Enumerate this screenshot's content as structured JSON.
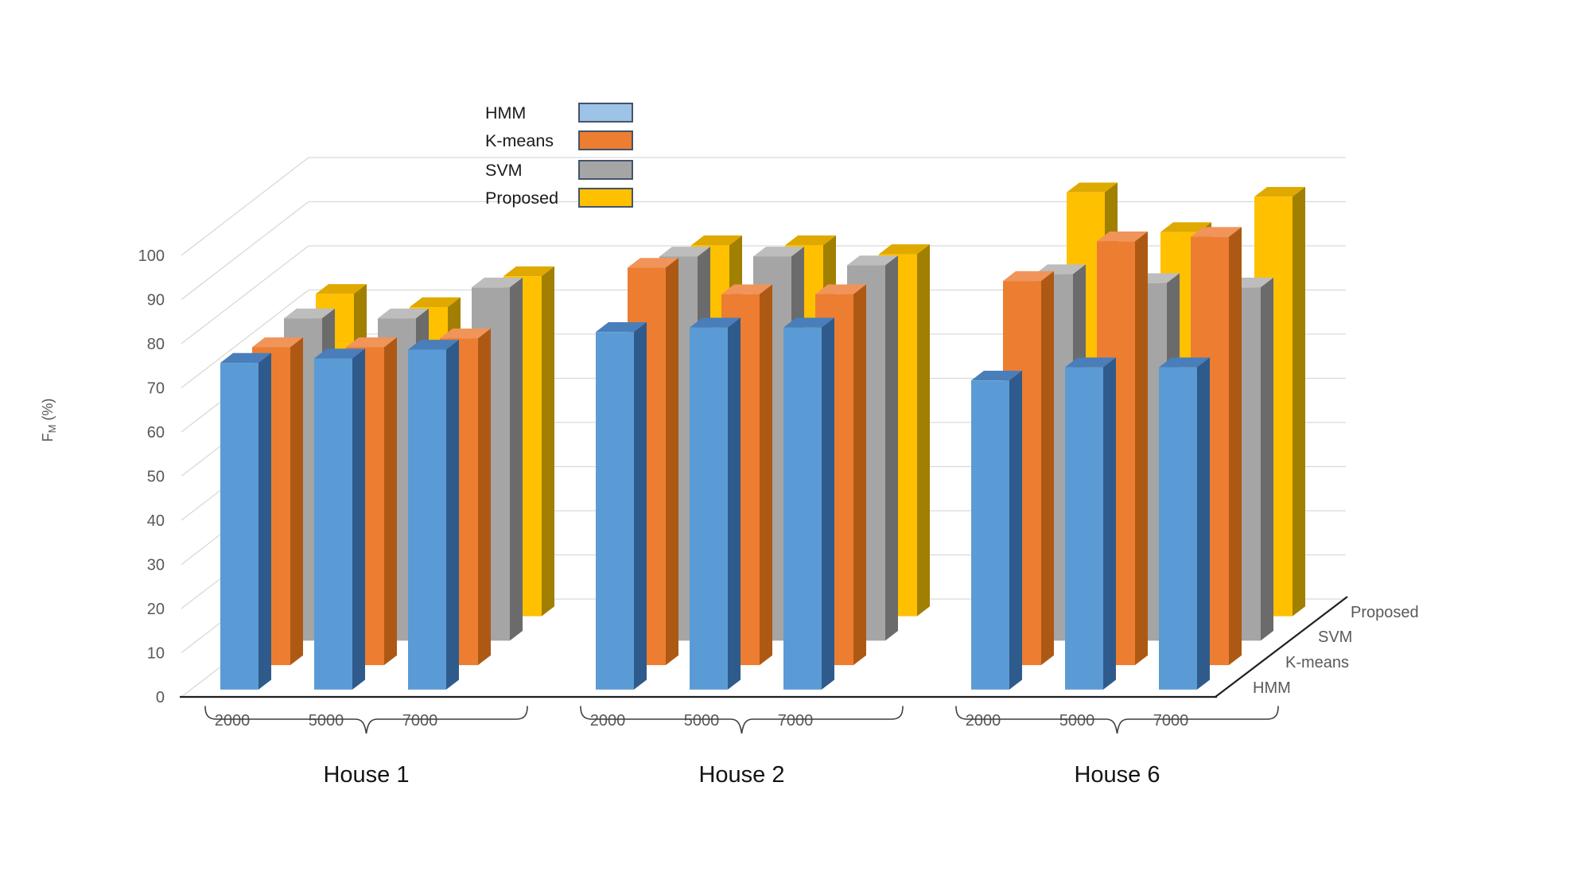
{
  "chart_data": {
    "type": "bar",
    "projection": "3d",
    "title": "",
    "ylabel": {
      "prefix": "F",
      "subscript": "M",
      "suffix": " (%)"
    },
    "y_axis": {
      "min": 0,
      "max": 100,
      "step": 10,
      "tick_labels": [
        "0",
        "10",
        "20",
        "30",
        "40",
        "50",
        "60",
        "70",
        "80",
        "90",
        "100"
      ]
    },
    "houses": [
      {
        "label": "House 1",
        "ticks": [
          "2000",
          "5000",
          "7000"
        ]
      },
      {
        "label": "House 2",
        "ticks": [
          "2000",
          "5000",
          "7000"
        ]
      },
      {
        "label": "House 6",
        "ticks": [
          "2000",
          "5000",
          "7000"
        ]
      }
    ],
    "series": [
      {
        "name": "HMM",
        "legend_fill": "#9DC3E6",
        "color_front": "#5B9BD5",
        "color_top": "#4A7EBA",
        "color_side": "#2E5B8C",
        "values": [
          [
            74,
            75,
            77
          ],
          [
            81,
            82,
            82
          ],
          [
            70,
            73,
            73
          ]
        ]
      },
      {
        "name": "K-means",
        "legend_fill": "#ED7D31",
        "color_front": "#ED7D31",
        "color_top": "#F0945A",
        "color_side": "#AE5913",
        "values": [
          [
            72,
            72,
            74
          ],
          [
            90,
            84,
            84
          ],
          [
            87,
            96,
            97
          ]
        ]
      },
      {
        "name": "SVM",
        "legend_fill": "#A5A5A5",
        "color_front": "#A5A5A5",
        "color_top": "#BDBDBD",
        "color_side": "#6B6B6B",
        "values": [
          [
            73,
            73,
            80
          ],
          [
            87,
            87,
            85
          ],
          [
            83,
            81,
            80
          ]
        ]
      },
      {
        "name": "Proposed",
        "legend_fill": "#FFC000",
        "color_front": "#FFC000",
        "color_top": "#DFA900",
        "color_side": "#A17F00",
        "values": [
          [
            73,
            70,
            77
          ],
          [
            84,
            84,
            82
          ],
          [
            96,
            87,
            95
          ]
        ]
      }
    ],
    "depth_axis_labels": [
      "HMM",
      "K-means",
      "SVM",
      "Proposed"
    ],
    "legend": {
      "position": "top-center",
      "entries": [
        "HMM",
        "K-means",
        "SVM",
        "Proposed"
      ]
    },
    "grid": true,
    "colors": {
      "grid": "#D9D9D9",
      "axis": "#1F1F1F",
      "tick_text": "#595959",
      "house_text": "#141414",
      "legend_text": "#1A1A1A",
      "legend_border": "#44546A",
      "brace": "#3F3F3F",
      "background": "#FFFFFF"
    }
  }
}
